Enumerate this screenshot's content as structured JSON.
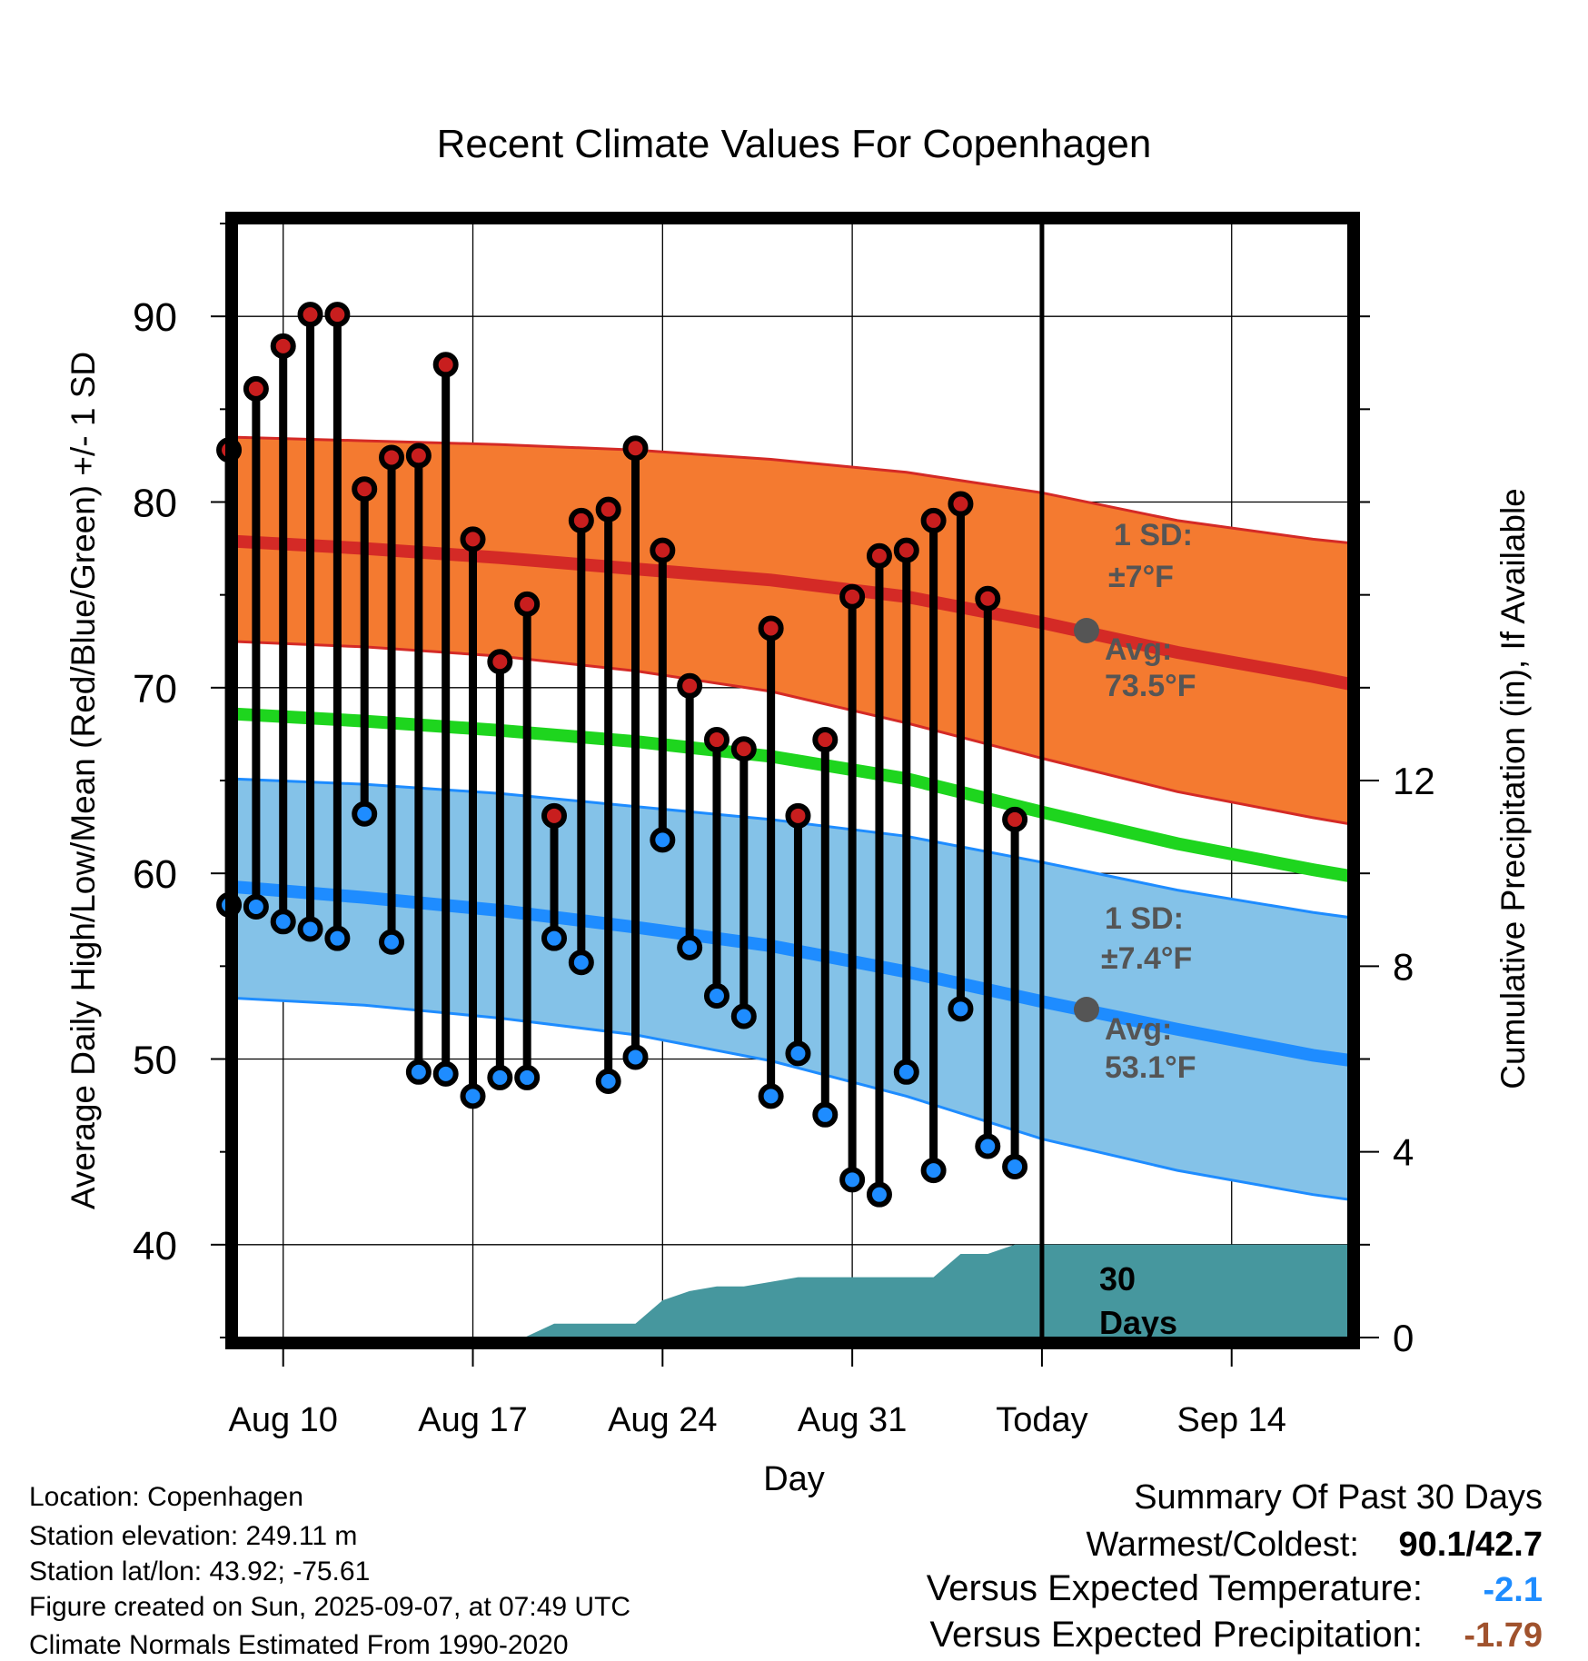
{
  "chart_data": {
    "type": "line",
    "title": "Recent Climate Values For Copenhagen",
    "xlabel": "Day",
    "ylabel_left": "Average Daily High/Low/Mean (Red/Blue/Green) +/- 1 SD",
    "ylabel_right": "Cumulative Precipitation (in), If Available",
    "x_range_days": [
      -29.7,
      11.3
    ],
    "ylim_left": [
      35,
      95
    ],
    "ylim_right": [
      0,
      24
    ],
    "left_ticks": [
      40,
      50,
      60,
      70,
      80,
      90
    ],
    "right_ticks": [
      0,
      4,
      8,
      12
    ],
    "x_ticks": [
      {
        "day": -28,
        "label": "Aug 10"
      },
      {
        "day": -21,
        "label": "Aug 17"
      },
      {
        "day": -14,
        "label": "Aug 24"
      },
      {
        "day": -7,
        "label": "Aug 31"
      },
      {
        "day": 0,
        "label": "Today"
      },
      {
        "day": 7,
        "label": "Sep 14"
      }
    ],
    "grid": true,
    "today_day": 0,
    "normals": {
      "days": [
        -30,
        -25,
        -20,
        -15,
        -10,
        -5,
        0,
        5,
        10,
        12
      ],
      "high_mean": [
        77.9,
        77.5,
        77.0,
        76.4,
        75.8,
        74.9,
        73.5,
        71.9,
        70.6,
        70.0
      ],
      "high_upper": [
        83.5,
        83.3,
        83.1,
        82.8,
        82.3,
        81.6,
        80.5,
        79.0,
        78.0,
        77.7
      ],
      "high_lower": [
        72.5,
        72.2,
        71.7,
        70.9,
        69.8,
        68.1,
        66.2,
        64.4,
        63.0,
        62.5
      ],
      "mean": [
        68.6,
        68.2,
        67.7,
        67.1,
        66.3,
        65.1,
        63.3,
        61.6,
        60.2,
        59.7
      ],
      "low_mean": [
        59.3,
        58.7,
        58.0,
        57.1,
        56.1,
        54.7,
        53.1,
        51.6,
        50.2,
        49.8
      ],
      "low_upper": [
        65.1,
        64.8,
        64.3,
        63.6,
        62.9,
        62.0,
        60.6,
        59.1,
        57.9,
        57.5
      ],
      "low_lower": [
        53.3,
        52.9,
        52.2,
        51.3,
        49.9,
        48.0,
        45.7,
        44.0,
        42.7,
        42.3
      ]
    },
    "observations": [
      {
        "day": -30,
        "high": 82.8,
        "low": 58.3
      },
      {
        "day": -29,
        "high": 86.1,
        "low": 58.2
      },
      {
        "day": -28,
        "high": 88.4,
        "low": 57.4
      },
      {
        "day": -27,
        "high": 90.1,
        "low": 57.0
      },
      {
        "day": -26,
        "high": 90.1,
        "low": 56.5
      },
      {
        "day": -25,
        "high": 80.7,
        "low": 63.2
      },
      {
        "day": -24,
        "high": 82.4,
        "low": 56.3
      },
      {
        "day": -23,
        "high": 82.5,
        "low": 49.3
      },
      {
        "day": -22,
        "high": 87.4,
        "low": 49.2
      },
      {
        "day": -21,
        "high": 78.0,
        "low": 48.0
      },
      {
        "day": -20,
        "high": 71.4,
        "low": 49.0
      },
      {
        "day": -19,
        "high": 74.5,
        "low": 49.0
      },
      {
        "day": -18,
        "high": 63.1,
        "low": 56.5
      },
      {
        "day": -17,
        "high": 79.0,
        "low": 55.2
      },
      {
        "day": -16,
        "high": 79.6,
        "low": 48.8
      },
      {
        "day": -15,
        "high": 82.9,
        "low": 50.1
      },
      {
        "day": -14,
        "high": 77.4,
        "low": 61.8
      },
      {
        "day": -13,
        "high": 70.1,
        "low": 56.0
      },
      {
        "day": -12,
        "high": 67.2,
        "low": 53.4
      },
      {
        "day": -11,
        "high": 66.7,
        "low": 52.3
      },
      {
        "day": -10,
        "high": 73.2,
        "low": 48.0
      },
      {
        "day": -9,
        "high": 63.1,
        "low": 50.3
      },
      {
        "day": -8,
        "high": 67.2,
        "low": 47.0
      },
      {
        "day": -7,
        "high": 74.9,
        "low": 43.5
      },
      {
        "day": -6,
        "high": 77.1,
        "low": 42.7
      },
      {
        "day": -5,
        "high": 77.4,
        "low": 49.3
      },
      {
        "day": -4,
        "high": 79.0,
        "low": 44.0
      },
      {
        "day": -3,
        "high": 79.9,
        "low": 52.7
      },
      {
        "day": -2,
        "high": 74.8,
        "low": 45.3
      },
      {
        "day": -1,
        "high": 62.9,
        "low": 44.2
      }
    ],
    "precipitation": {
      "days": [
        -19.1,
        -18,
        -17,
        -15,
        -14,
        -13,
        -12,
        -11,
        -10,
        -9,
        -8,
        -7,
        -6,
        -5,
        -4,
        -3,
        -2,
        -1,
        0,
        11.3
      ],
      "cumulative": [
        0.0,
        0.3,
        0.3,
        0.3,
        0.8,
        1.0,
        1.1,
        1.1,
        1.2,
        1.3,
        1.3,
        1.3,
        1.3,
        1.3,
        1.3,
        1.8,
        1.8,
        2.0,
        2.0,
        2.0
      ]
    },
    "annotations": {
      "high_sd_title": "1 SD:",
      "high_sd_value": "±7°F",
      "high_avg_title": "Avg:",
      "high_avg_value": "73.5°F",
      "low_sd_title": "1 SD:",
      "low_sd_value": "±7.4°F",
      "low_avg_title": "Avg:",
      "low_avg_value": "53.1°F",
      "precip_label_1": "30",
      "precip_label_2": "Days"
    },
    "colors": {
      "high_band": "#f47a30",
      "high_line": "#d42a26",
      "mean_line": "#1ed51e",
      "low_band": "#84c2e8",
      "low_line": "#1e8cff",
      "precip_fill": "#46979e",
      "high_dot": "#c81e1e",
      "low_dot": "#1e8cff",
      "annotation_text": "#555555",
      "versus_temp": "#1e8cff",
      "versus_precip": "#a0522d"
    }
  },
  "info": {
    "location": "Location: Copenhagen",
    "elevation": "Station elevation: 249.11 m",
    "latlon": "Station lat/lon: 43.92; -75.61",
    "created": "Figure created on Sun, 2025-09-07, at 07:49 UTC",
    "normals_period": "Climate Normals Estimated From 1990-2020"
  },
  "summary": {
    "title": "Summary Of Past 30 Days",
    "warm_cold_label": "Warmest/Coldest:",
    "warm_cold_value": "90.1/42.7",
    "vs_temp_label": "Versus Expected Temperature:",
    "vs_temp_value": "-2.1",
    "vs_precip_label": "Versus Expected Precipitation:",
    "vs_precip_value": "-1.79"
  }
}
